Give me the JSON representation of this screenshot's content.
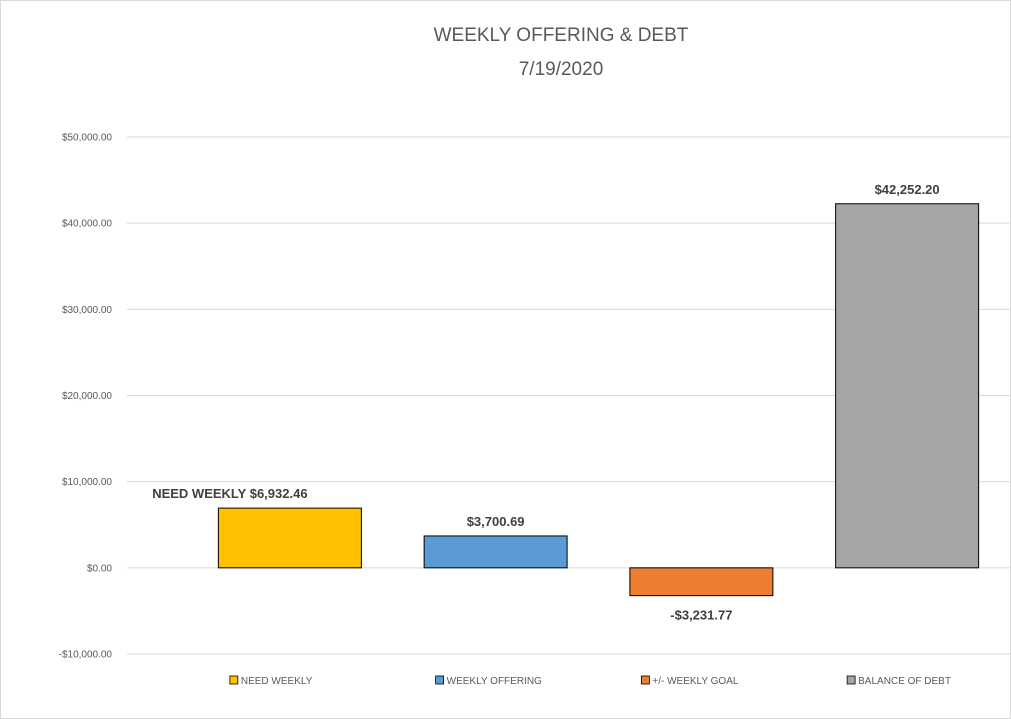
{
  "chart_data": {
    "type": "bar",
    "title": "WEEKLY OFFERING & DEBT",
    "subtitle": "7/19/2020",
    "categories": [
      "NEED WEEKLY",
      "WEEKLY OFFERING",
      "+/- WEEKLY GOAL",
      "BALANCE OF DEBT"
    ],
    "values": [
      6932.46,
      3700.69,
      -3231.77,
      42252.2
    ],
    "data_labels": [
      "NEED WEEKLY  $6,932.46",
      "$3,700.69",
      "-$3,231.77",
      "$42,252.20"
    ],
    "colors": [
      "#ffc000",
      "#5b9bd5",
      "#ed7d31",
      "#a5a5a5"
    ],
    "ylim": [
      -10000,
      50000
    ],
    "yticks": [
      50000,
      40000,
      30000,
      20000,
      10000,
      0,
      -10000
    ],
    "ytick_labels": [
      "$50,000.00",
      "$40,000.00",
      "$30,000.00",
      "$20,000.00",
      "$10,000.00",
      "$0.00",
      "-$10,000.00"
    ],
    "grid": true,
    "legend": "bottom",
    "legend_entries": [
      "NEED WEEKLY",
      "WEEKLY OFFERING",
      "+/- WEEKLY GOAL",
      "BALANCE OF DEBT"
    ]
  }
}
